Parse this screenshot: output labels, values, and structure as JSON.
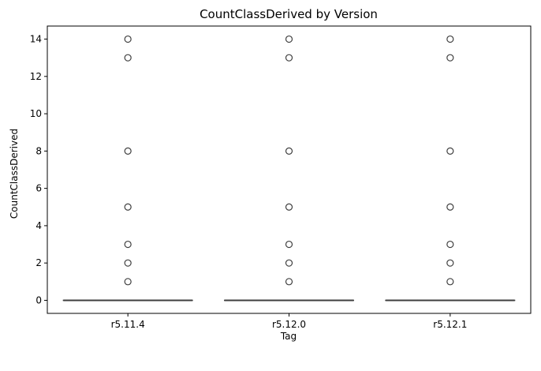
{
  "chart_data": {
    "type": "box",
    "title": "CountClassDerived by Version",
    "xlabel": "Tag",
    "ylabel": "CountClassDerived",
    "categories": [
      "r5.11.4",
      "r5.12.0",
      "r5.12.1"
    ],
    "ylim": [
      -0.7,
      14.7
    ],
    "yticks": [
      0,
      2,
      4,
      6,
      8,
      10,
      12,
      14
    ],
    "boxes": [
      {
        "category": "r5.11.4",
        "q1": 0,
        "median": 0,
        "q3": 0,
        "whisker_low": 0,
        "whisker_high": 0,
        "outliers": [
          1,
          2,
          3,
          5,
          8,
          13,
          14
        ]
      },
      {
        "category": "r5.12.0",
        "q1": 0,
        "median": 0,
        "q3": 0,
        "whisker_low": 0,
        "whisker_high": 0,
        "outliers": [
          1,
          2,
          3,
          5,
          8,
          13,
          14
        ]
      },
      {
        "category": "r5.12.1",
        "q1": 0,
        "median": 0,
        "q3": 0,
        "whisker_low": 0,
        "whisker_high": 0,
        "outliers": [
          1,
          2,
          3,
          5,
          8,
          13,
          14
        ]
      }
    ],
    "grid": false,
    "colors": {
      "line": "#3f3f3f",
      "frame": "#000000"
    }
  }
}
